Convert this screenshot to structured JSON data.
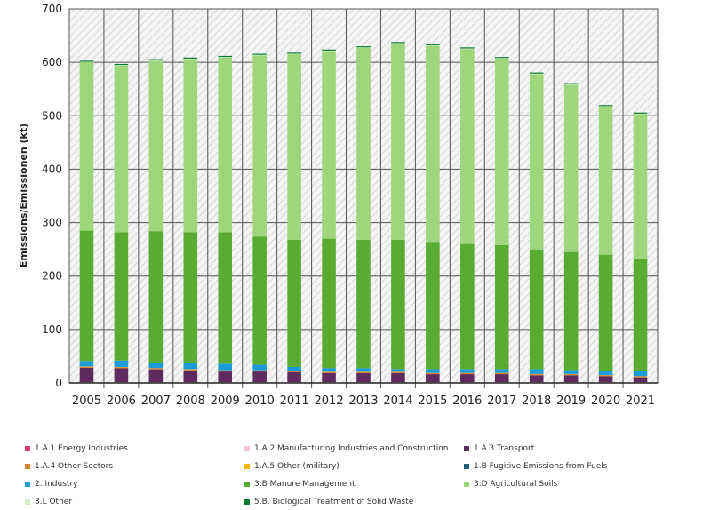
{
  "chart_data": {
    "type": "bar",
    "stacked": true,
    "ylabel": "Emissions/Emissionen (kt)",
    "ylim": [
      0,
      700
    ],
    "yticks": [
      "0",
      "100",
      "200",
      "300",
      "400",
      "500",
      "600",
      "700"
    ],
    "categories": [
      "2005",
      "2006",
      "2007",
      "2008",
      "2009",
      "2010",
      "2011",
      "2012",
      "2013",
      "2014",
      "2015",
      "2016",
      "2017",
      "2018",
      "2019",
      "2020",
      "2021"
    ],
    "grid": true,
    "legend_position": "bottom",
    "series": [
      {
        "name": "1.A.1 Energy Industries",
        "color": "#d63a6a",
        "values": [
          1,
          1,
          1,
          1,
          1,
          1,
          1,
          1,
          1,
          1,
          1,
          1,
          1,
          1,
          1,
          1,
          1
        ]
      },
      {
        "name": "1.A.2 Manufacturing Industries and Construction",
        "color": "#f7c5d2",
        "values": [
          0.5,
          0.5,
          0.5,
          0.5,
          0.5,
          0.5,
          0.5,
          0.5,
          0.5,
          0.5,
          0.5,
          0.5,
          0.5,
          0.5,
          0.5,
          0.5,
          0.5
        ]
      },
      {
        "name": "1.A.3 Transport",
        "color": "#5e2b5e",
        "values": [
          27,
          26,
          24,
          22,
          20,
          20,
          19,
          17,
          17,
          17,
          15,
          15,
          15,
          13,
          13,
          11,
          9
        ]
      },
      {
        "name": "1.A.4 Other Sectors",
        "color": "#d9822b",
        "values": [
          2,
          2,
          2,
          2,
          2,
          2,
          2,
          2,
          2,
          2,
          2,
          2,
          2,
          2,
          2,
          2,
          2
        ]
      },
      {
        "name": "1.A.5 Other (military)",
        "color": "#f2b705",
        "values": [
          0.3,
          0.3,
          0.3,
          0.3,
          0.3,
          0.3,
          0.3,
          0.3,
          0.3,
          0.3,
          0.3,
          0.3,
          0.3,
          0.3,
          0.3,
          0.3,
          0.3
        ]
      },
      {
        "name": "1.B Fugitive Emissions from Fuels",
        "color": "#1f5f7a",
        "values": [
          0.2,
          0.2,
          0.2,
          0.2,
          0.2,
          0.2,
          0.2,
          0.2,
          0.2,
          0.2,
          0.2,
          0.2,
          0.2,
          0.2,
          0.2,
          0.2,
          0.2
        ]
      },
      {
        "name": "2. Industry",
        "color": "#1b9bd7",
        "values": [
          10,
          12,
          9,
          11,
          12,
          10,
          7,
          7,
          7,
          5,
          7,
          7,
          7,
          9,
          7,
          7,
          9
        ]
      },
      {
        "name": "3.B Manure Management",
        "color": "#5aab32",
        "values": [
          244,
          240,
          247,
          245,
          246,
          240,
          238,
          242,
          240,
          242,
          238,
          234,
          232,
          224,
          221,
          218,
          210
        ]
      },
      {
        "name": "3.D Agricultural Soils",
        "color": "#9ed67c",
        "values": [
          315,
          312,
          319,
          324,
          327,
          339,
          347,
          351,
          359,
          367,
          367,
          365,
          349,
          328,
          313,
          277,
          271
        ]
      },
      {
        "name": "3.L Other",
        "color": "#d8f0cc",
        "values": [
          1,
          1,
          1,
          1,
          1,
          1,
          1,
          1,
          1,
          1,
          1,
          1,
          1,
          1,
          1,
          1,
          1
        ]
      },
      {
        "name": "5.B. Biological Treatment of Solid Waste",
        "color": "#0a7a2e",
        "values": [
          2,
          2,
          2,
          2,
          2,
          2,
          2,
          2,
          2,
          2,
          2,
          2,
          2,
          2,
          2,
          2,
          2
        ]
      }
    ]
  }
}
